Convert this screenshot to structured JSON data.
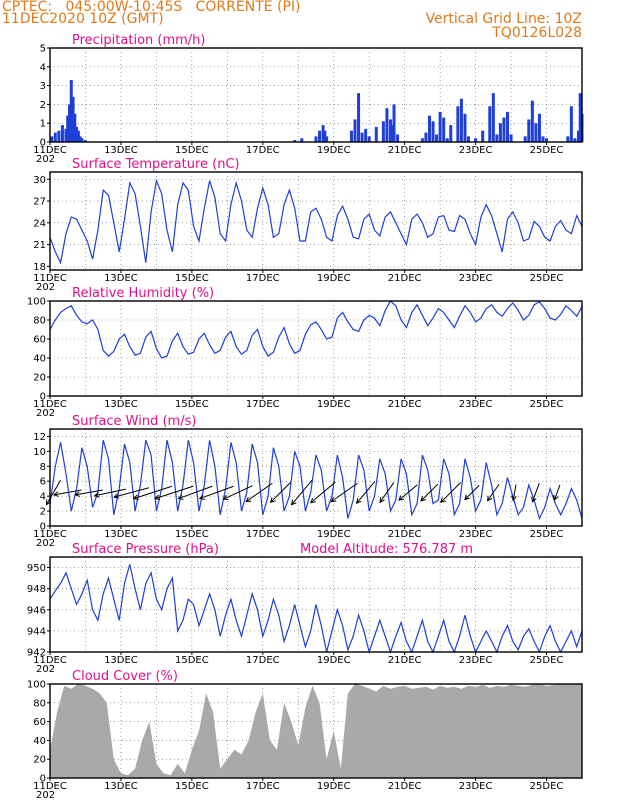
{
  "header": {
    "line1": "CPTEC:   045:00W-10:45S   CORRENTE (PI)",
    "line2": "11DEC2020 10Z (GMT)",
    "right1": "Vertical Grid Line: 10Z",
    "right2": "TQ0126L028"
  },
  "colors": {
    "header": "#e07a1a",
    "title": "#e0108a",
    "line": "#1f3fd6",
    "bar": "#1f3fd6",
    "cloud": "#a9a9a9",
    "grid": "#666666"
  },
  "date_labels": [
    "11DEC",
    "13DEC",
    "15DEC",
    "17DEC",
    "19DEC",
    "21DEC",
    "23DEC",
    "25DEC"
  ],
  "cut_label": "202",
  "chart_data": [
    {
      "id": "precip",
      "type": "bar",
      "title": "Precipitation (mm/h)",
      "ylim": [
        0,
        5
      ],
      "yticks": [
        0,
        1,
        2,
        3,
        4,
        5
      ],
      "xlim": [
        0,
        15
      ],
      "x_unit": "days since 11DEC 10Z",
      "x": [
        0.05,
        0.15,
        0.25,
        0.35,
        0.45,
        0.5,
        0.55,
        0.6,
        0.65,
        0.7,
        0.75,
        0.8,
        0.85,
        0.9,
        1.0,
        6.9,
        7.1,
        7.5,
        7.6,
        7.7,
        7.75,
        7.8,
        8.5,
        8.6,
        8.7,
        8.8,
        8.9,
        9.0,
        9.2,
        9.4,
        9.5,
        9.6,
        9.65,
        9.7,
        9.8,
        10.5,
        10.6,
        10.7,
        10.8,
        10.9,
        11.0,
        11.1,
        11.2,
        11.3,
        11.5,
        11.6,
        11.7,
        11.8,
        12.0,
        12.2,
        12.4,
        12.5,
        12.6,
        12.7,
        12.8,
        12.9,
        13.0,
        13.4,
        13.5,
        13.6,
        13.7,
        13.8,
        13.9,
        14.0,
        14.6,
        14.7,
        14.8,
        14.9,
        14.95,
        15.0
      ],
      "values": [
        0.3,
        0.5,
        0.6,
        0.9,
        0.7,
        1.4,
        2.0,
        3.3,
        2.4,
        1.5,
        0.8,
        0.6,
        0.3,
        0.2,
        0.1,
        0.1,
        0.2,
        0.3,
        0.6,
        0.9,
        0.6,
        0.3,
        0.6,
        1.2,
        2.6,
        0.5,
        0.7,
        0.3,
        0.8,
        1.1,
        1.8,
        1.2,
        0.9,
        2.0,
        0.4,
        0.2,
        0.5,
        1.4,
        1.1,
        0.4,
        1.6,
        1.3,
        0.2,
        0.9,
        1.9,
        2.3,
        1.5,
        0.3,
        0.2,
        0.6,
        1.9,
        2.6,
        0.4,
        1.0,
        1.3,
        1.6,
        0.4,
        0.3,
        1.2,
        2.2,
        1.0,
        1.5,
        0.3,
        0.2,
        0.3,
        1.9,
        0.2,
        0.6,
        2.6,
        1.5
      ]
    },
    {
      "id": "temp",
      "type": "line",
      "title": "Surface Temperature (nC)",
      "ylim": [
        17.5,
        31
      ],
      "yticks": [
        18,
        21,
        24,
        27,
        30
      ],
      "xlim": [
        0,
        15
      ],
      "x_unit": "days since 11DEC 10Z",
      "x": [
        0,
        0.15,
        0.3,
        0.45,
        0.6,
        0.75,
        0.9,
        1.05,
        1.2,
        1.35,
        1.5,
        1.65,
        1.8,
        1.95,
        2.1,
        2.25,
        2.4,
        2.55,
        2.7,
        2.85,
        3.0,
        3.15,
        3.3,
        3.45,
        3.6,
        3.75,
        3.9,
        4.05,
        4.2,
        4.35,
        4.5,
        4.65,
        4.8,
        4.95,
        5.1,
        5.25,
        5.4,
        5.55,
        5.7,
        5.85,
        6.0,
        6.15,
        6.3,
        6.45,
        6.6,
        6.75,
        6.9,
        7.05,
        7.2,
        7.35,
        7.5,
        7.65,
        7.8,
        7.95,
        8.1,
        8.25,
        8.4,
        8.55,
        8.7,
        8.85,
        9.0,
        9.15,
        9.3,
        9.45,
        9.6,
        9.75,
        9.9,
        10.05,
        10.2,
        10.35,
        10.5,
        10.65,
        10.8,
        10.95,
        11.1,
        11.25,
        11.4,
        11.55,
        11.7,
        11.85,
        12.0,
        12.15,
        12.3,
        12.45,
        12.6,
        12.75,
        12.9,
        13.05,
        13.2,
        13.35,
        13.5,
        13.65,
        13.8,
        13.95,
        14.1,
        14.25,
        14.4,
        14.55,
        14.7,
        14.85,
        15.0
      ],
      "values": [
        22.0,
        20.0,
        18.5,
        22.5,
        24.8,
        24.5,
        23.0,
        21.5,
        19.0,
        23.0,
        28.5,
        27.8,
        24.0,
        20.0,
        24.5,
        29.5,
        28.0,
        23.5,
        18.5,
        25.5,
        29.8,
        28.0,
        23.0,
        20.0,
        26.5,
        29.5,
        28.5,
        23.5,
        21.5,
        26.0,
        29.8,
        27.5,
        22.5,
        21.5,
        26.5,
        29.5,
        27.0,
        23.0,
        22.0,
        26.0,
        28.8,
        26.5,
        22.0,
        22.5,
        26.5,
        28.5,
        26.0,
        21.5,
        21.5,
        25.5,
        26.0,
        24.5,
        22.0,
        21.5,
        25.0,
        26.3,
        24.5,
        22.0,
        21.8,
        24.5,
        25.2,
        23.0,
        22.2,
        24.8,
        25.5,
        24.0,
        22.5,
        21.0,
        24.5,
        25.2,
        24.0,
        22.0,
        22.5,
        24.8,
        25.0,
        23.0,
        22.8,
        25.0,
        24.5,
        22.5,
        21.0,
        24.8,
        26.5,
        25.0,
        22.5,
        20.0,
        24.5,
        25.5,
        24.0,
        21.5,
        21.8,
        24.2,
        23.5,
        22.0,
        21.5,
        23.5,
        24.3,
        23.0,
        22.5,
        25.0,
        23.5
      ]
    },
    {
      "id": "rh",
      "type": "line",
      "title": "Relative Humidity (%)",
      "ylim": [
        0,
        100
      ],
      "yticks": [
        0,
        20,
        40,
        60,
        80,
        100
      ],
      "xlim": [
        0,
        15
      ],
      "x_unit": "days since 11DEC 10Z",
      "x": [
        0,
        0.15,
        0.3,
        0.45,
        0.6,
        0.75,
        0.9,
        1.05,
        1.2,
        1.35,
        1.5,
        1.65,
        1.8,
        1.95,
        2.1,
        2.25,
        2.4,
        2.55,
        2.7,
        2.85,
        3.0,
        3.15,
        3.3,
        3.45,
        3.6,
        3.75,
        3.9,
        4.05,
        4.2,
        4.35,
        4.5,
        4.65,
        4.8,
        4.95,
        5.1,
        5.25,
        5.4,
        5.55,
        5.7,
        5.85,
        6.0,
        6.15,
        6.3,
        6.45,
        6.6,
        6.75,
        6.9,
        7.05,
        7.2,
        7.35,
        7.5,
        7.65,
        7.8,
        7.95,
        8.1,
        8.25,
        8.4,
        8.55,
        8.7,
        8.85,
        9.0,
        9.15,
        9.3,
        9.45,
        9.6,
        9.75,
        9.9,
        10.05,
        10.2,
        10.35,
        10.5,
        10.65,
        10.8,
        10.95,
        11.1,
        11.25,
        11.4,
        11.55,
        11.7,
        11.85,
        12.0,
        12.15,
        12.3,
        12.45,
        12.6,
        12.75,
        12.9,
        13.05,
        13.2,
        13.35,
        13.5,
        13.65,
        13.8,
        13.95,
        14.1,
        14.25,
        14.4,
        14.55,
        14.7,
        14.85,
        15.0
      ],
      "values": [
        70,
        80,
        88,
        92,
        95,
        85,
        78,
        76,
        80,
        70,
        48,
        42,
        47,
        60,
        65,
        52,
        43,
        45,
        62,
        68,
        50,
        40,
        42,
        58,
        66,
        52,
        44,
        46,
        60,
        66,
        54,
        45,
        48,
        62,
        68,
        52,
        44,
        48,
        64,
        70,
        52,
        42,
        46,
        62,
        72,
        55,
        45,
        48,
        65,
        75,
        78,
        70,
        60,
        62,
        82,
        88,
        78,
        70,
        68,
        80,
        85,
        82,
        74,
        90,
        100,
        95,
        80,
        72,
        88,
        96,
        85,
        74,
        82,
        92,
        88,
        80,
        72,
        84,
        95,
        88,
        78,
        82,
        92,
        96,
        88,
        84,
        92,
        98,
        90,
        80,
        85,
        96,
        99,
        92,
        82,
        80,
        86,
        95,
        90,
        84,
        94
      ]
    },
    {
      "id": "wind",
      "type": "line",
      "title": "Surface Wind (m/s)",
      "ylim": [
        0,
        13
      ],
      "yticks": [
        0,
        2,
        4,
        6,
        8,
        10,
        12
      ],
      "xlim": [
        0,
        15
      ],
      "x_unit": "days since 11DEC 10Z",
      "x": [
        0,
        0.15,
        0.3,
        0.45,
        0.6,
        0.75,
        0.9,
        1.05,
        1.2,
        1.35,
        1.5,
        1.65,
        1.8,
        1.95,
        2.1,
        2.25,
        2.4,
        2.55,
        2.7,
        2.85,
        3.0,
        3.15,
        3.3,
        3.45,
        3.6,
        3.75,
        3.9,
        4.05,
        4.2,
        4.35,
        4.5,
        4.65,
        4.8,
        4.95,
        5.1,
        5.25,
        5.4,
        5.55,
        5.7,
        5.85,
        6.0,
        6.15,
        6.3,
        6.45,
        6.6,
        6.75,
        6.9,
        7.05,
        7.2,
        7.35,
        7.5,
        7.65,
        7.8,
        7.95,
        8.1,
        8.25,
        8.4,
        8.55,
        8.7,
        8.85,
        9.0,
        9.15,
        9.3,
        9.45,
        9.6,
        9.75,
        9.9,
        10.05,
        10.2,
        10.35,
        10.5,
        10.65,
        10.8,
        10.95,
        11.1,
        11.25,
        11.4,
        11.55,
        11.7,
        11.85,
        12.0,
        12.15,
        12.3,
        12.45,
        12.6,
        12.75,
        12.9,
        13.05,
        13.2,
        13.35,
        13.5,
        13.65,
        13.8,
        13.95,
        14.1,
        14.25,
        14.4,
        14.55,
        14.7,
        14.85,
        15.0
      ],
      "values": [
        3.0,
        8.0,
        11.2,
        7.0,
        2.0,
        5.0,
        10.5,
        8.0,
        2.5,
        4.5,
        11.5,
        9.0,
        1.5,
        5.0,
        11.0,
        8.5,
        2.0,
        5.5,
        11.5,
        9.5,
        2.0,
        5.0,
        11.5,
        8.5,
        2.0,
        5.5,
        11.5,
        8.5,
        2.0,
        5.5,
        11.5,
        8.0,
        1.5,
        5.0,
        11.2,
        8.5,
        2.0,
        4.5,
        11.0,
        8.5,
        1.5,
        4.0,
        10.5,
        8.0,
        2.0,
        4.0,
        10.0,
        8.0,
        2.0,
        4.5,
        9.5,
        7.5,
        2.0,
        4.0,
        9.5,
        6.5,
        1.0,
        3.5,
        9.5,
        7.5,
        2.0,
        4.0,
        9.0,
        7.0,
        2.0,
        3.5,
        9.0,
        7.0,
        1.5,
        3.0,
        9.5,
        7.5,
        3.0,
        3.5,
        9.0,
        7.0,
        1.5,
        3.0,
        9.0,
        6.5,
        2.0,
        3.5,
        8.5,
        5.5,
        1.5,
        3.0,
        6.5,
        4.0,
        1.5,
        2.5,
        5.5,
        3.5,
        1.0,
        2.5,
        5.0,
        3.0,
        1.5,
        3.0,
        5.0,
        3.5,
        1.0
      ],
      "arrows": [
        {
          "x": 0.1,
          "speed": 5,
          "dir_deg": 30
        },
        {
          "x": 0.5,
          "speed": 5,
          "dir_deg": 80
        },
        {
          "x": 1.1,
          "speed": 5,
          "dir_deg": 80
        },
        {
          "x": 1.7,
          "speed": 6,
          "dir_deg": 78
        },
        {
          "x": 2.3,
          "speed": 7,
          "dir_deg": 75
        },
        {
          "x": 2.9,
          "speed": 8,
          "dir_deg": 72
        },
        {
          "x": 3.5,
          "speed": 8,
          "dir_deg": 72
        },
        {
          "x": 4.1,
          "speed": 7,
          "dir_deg": 70
        },
        {
          "x": 4.7,
          "speed": 7,
          "dir_deg": 70
        },
        {
          "x": 5.3,
          "speed": 6,
          "dir_deg": 65
        },
        {
          "x": 5.9,
          "speed": 6,
          "dir_deg": 55
        },
        {
          "x": 6.5,
          "speed": 5,
          "dir_deg": 45
        },
        {
          "x": 7.1,
          "speed": 6,
          "dir_deg": 40
        },
        {
          "x": 7.7,
          "speed": 6,
          "dir_deg": 50
        },
        {
          "x": 8.3,
          "speed": 6,
          "dir_deg": 55
        },
        {
          "x": 8.9,
          "speed": 5,
          "dir_deg": 40
        },
        {
          "x": 9.5,
          "speed": 4,
          "dir_deg": 35
        },
        {
          "x": 10.1,
          "speed": 4,
          "dir_deg": 50
        },
        {
          "x": 10.7,
          "speed": 4,
          "dir_deg": 45
        },
        {
          "x": 11.3,
          "speed": 5,
          "dir_deg": 45
        },
        {
          "x": 11.9,
          "speed": 3,
          "dir_deg": 45
        },
        {
          "x": 12.5,
          "speed": 3,
          "dir_deg": 35
        },
        {
          "x": 13.1,
          "speed": 2,
          "dir_deg": 10
        },
        {
          "x": 13.7,
          "speed": 3,
          "dir_deg": 20
        },
        {
          "x": 14.3,
          "speed": 2,
          "dir_deg": 20
        }
      ]
    },
    {
      "id": "pres",
      "type": "line",
      "title": "Surface Pressure (hPa)",
      "annotation": "Model Altitude: 576.787  m",
      "ylim": [
        942,
        951
      ],
      "yticks": [
        942,
        944,
        946,
        948,
        950
      ],
      "xlim": [
        0,
        15
      ],
      "x_unit": "days since 11DEC 10Z",
      "x": [
        0,
        0.15,
        0.3,
        0.45,
        0.6,
        0.75,
        0.9,
        1.05,
        1.2,
        1.35,
        1.5,
        1.65,
        1.8,
        1.95,
        2.1,
        2.25,
        2.4,
        2.55,
        2.7,
        2.85,
        3.0,
        3.15,
        3.3,
        3.45,
        3.6,
        3.75,
        3.9,
        4.05,
        4.2,
        4.35,
        4.5,
        4.65,
        4.8,
        4.95,
        5.1,
        5.25,
        5.4,
        5.55,
        5.7,
        5.85,
        6.0,
        6.15,
        6.3,
        6.45,
        6.6,
        6.75,
        6.9,
        7.05,
        7.2,
        7.35,
        7.5,
        7.65,
        7.8,
        7.95,
        8.1,
        8.25,
        8.4,
        8.55,
        8.7,
        8.85,
        9.0,
        9.15,
        9.3,
        9.45,
        9.6,
        9.75,
        9.9,
        10.05,
        10.2,
        10.35,
        10.5,
        10.65,
        10.8,
        10.95,
        11.1,
        11.25,
        11.4,
        11.55,
        11.7,
        11.85,
        12.0,
        12.15,
        12.3,
        12.45,
        12.6,
        12.75,
        12.9,
        13.05,
        13.2,
        13.35,
        13.5,
        13.65,
        13.8,
        13.95,
        14.1,
        14.25,
        14.4,
        14.55,
        14.7,
        14.85,
        15.0
      ],
      "values": [
        947.0,
        947.8,
        948.5,
        949.5,
        948.0,
        946.5,
        947.5,
        948.8,
        946.0,
        945.0,
        947.5,
        949.0,
        947.0,
        945.0,
        948.5,
        950.3,
        948.0,
        946.0,
        948.5,
        949.5,
        947.0,
        946.0,
        948.0,
        949.0,
        944.0,
        945.0,
        947.0,
        946.5,
        944.5,
        946.0,
        947.5,
        946.0,
        943.5,
        945.5,
        947.0,
        945.0,
        943.5,
        945.5,
        947.5,
        946.0,
        943.5,
        945.0,
        947.0,
        945.5,
        943.0,
        944.5,
        946.5,
        944.5,
        942.5,
        944.0,
        946.5,
        944.5,
        942.0,
        944.0,
        946.0,
        944.5,
        942.2,
        943.5,
        945.5,
        944.0,
        942.0,
        943.5,
        945.0,
        943.5,
        942.0,
        943.5,
        944.8,
        943.0,
        942.0,
        943.5,
        945.0,
        943.0,
        942.0,
        943.5,
        945.0,
        943.0,
        942.0,
        943.5,
        945.5,
        943.5,
        942.0,
        943.0,
        944.0,
        943.0,
        942.0,
        943.5,
        944.5,
        943.0,
        942.2,
        943.5,
        944.2,
        943.0,
        942.0,
        943.5,
        944.5,
        943.0,
        942.0,
        943.0,
        944.0,
        942.5,
        944.0
      ]
    },
    {
      "id": "cloud",
      "type": "area",
      "title": "Cloud Cover (%)",
      "ylim": [
        0,
        100
      ],
      "yticks": [
        0,
        20,
        40,
        60,
        80,
        100
      ],
      "xlim": [
        0,
        15
      ],
      "x_unit": "days since 11DEC 10Z",
      "x": [
        0,
        0.2,
        0.4,
        0.6,
        0.8,
        1.0,
        1.2,
        1.4,
        1.6,
        1.8,
        2.0,
        2.2,
        2.4,
        2.6,
        2.8,
        3.0,
        3.2,
        3.4,
        3.6,
        3.8,
        4.0,
        4.2,
        4.4,
        4.6,
        4.8,
        5.0,
        5.2,
        5.4,
        5.6,
        5.8,
        6.0,
        6.2,
        6.4,
        6.6,
        6.8,
        7.0,
        7.2,
        7.4,
        7.6,
        7.8,
        8.0,
        8.2,
        8.4,
        8.6,
        8.8,
        9.0,
        9.2,
        9.4,
        9.6,
        9.8,
        10.0,
        10.2,
        10.4,
        10.6,
        10.8,
        11.0,
        11.2,
        11.4,
        11.6,
        11.8,
        12.0,
        12.2,
        12.4,
        12.6,
        12.8,
        13.0,
        13.2,
        13.4,
        13.6,
        13.8,
        14.0,
        14.2,
        14.4,
        14.6,
        14.8,
        15.0
      ],
      "values": [
        30,
        70,
        98,
        95,
        100,
        98,
        95,
        90,
        80,
        20,
        5,
        3,
        10,
        40,
        60,
        15,
        5,
        3,
        15,
        5,
        30,
        50,
        90,
        70,
        10,
        20,
        30,
        25,
        40,
        70,
        90,
        40,
        30,
        80,
        60,
        35,
        75,
        98,
        80,
        20,
        50,
        10,
        90,
        100,
        98,
        95,
        92,
        98,
        95,
        97,
        98,
        95,
        96,
        97,
        94,
        98,
        96,
        97,
        95,
        98,
        97,
        99,
        96,
        98,
        97,
        99,
        98,
        97,
        99,
        100,
        98,
        99,
        100,
        99,
        100,
        100
      ]
    }
  ]
}
